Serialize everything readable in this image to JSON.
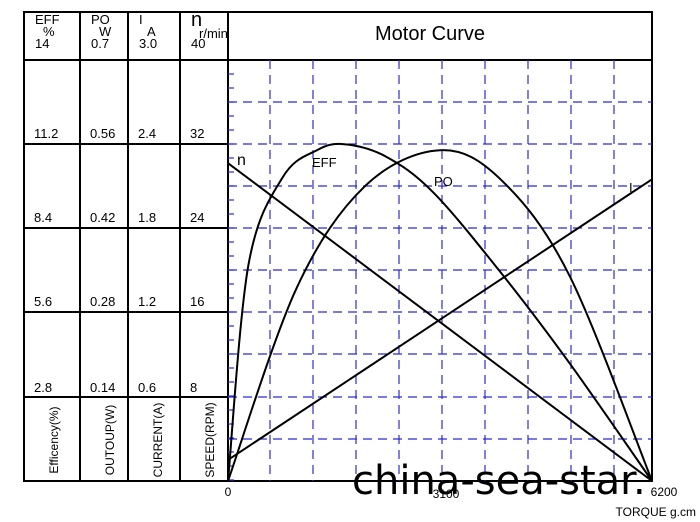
{
  "chart_data": {
    "type": "line",
    "title": "Motor Curve",
    "xlabel": "TORQUE g.cm",
    "xlim": [
      0,
      6200
    ],
    "x_ticks": [
      "0",
      "3100",
      "6200"
    ],
    "columns": [
      {
        "key": "eff",
        "header": [
          "EFF",
          "%",
          "14"
        ],
        "ticks": [
          "11.2",
          "8.4",
          "5.6",
          "2.8"
        ],
        "vertical_label": "Efficency(%)",
        "ylim": [
          0,
          14
        ]
      },
      {
        "key": "po",
        "header": [
          "PO",
          "W",
          "0.7"
        ],
        "ticks": [
          "0.56",
          "0.42",
          "0.28",
          "0.14"
        ],
        "vertical_label": "OUTOUP(W)",
        "ylim": [
          0,
          0.7
        ]
      },
      {
        "key": "i",
        "header": [
          "I",
          "A",
          "3.0"
        ],
        "ticks": [
          "2.4",
          "1.8",
          "1.2",
          "0.6"
        ],
        "vertical_label": "CURRENT(A)",
        "ylim": [
          0,
          3.0
        ]
      },
      {
        "key": "n",
        "header": [
          "n",
          "r/min",
          "40"
        ],
        "ticks": [
          "32",
          "24",
          "16",
          "8"
        ],
        "vertical_label": "SPEED(RPM)",
        "ylim": [
          0,
          40
        ]
      }
    ],
    "series": [
      {
        "name": "n",
        "axis": "n",
        "x": [
          0,
          6200
        ],
        "values": [
          30.2,
          0
        ]
      },
      {
        "name": "I",
        "axis": "i",
        "x": [
          0,
          6200
        ],
        "values": [
          0.15,
          2.15
        ]
      },
      {
        "name": "PO",
        "axis": "po",
        "x": [
          0,
          1000,
          2000,
          3100,
          4000,
          5000,
          6200
        ],
        "values": [
          0,
          0.32,
          0.49,
          0.55,
          0.5,
          0.34,
          0
        ]
      },
      {
        "name": "EFF",
        "axis": "eff",
        "x": [
          0,
          300,
          800,
          1300,
          1700,
          2300,
          3000,
          4000,
          5000,
          6200
        ],
        "values": [
          0,
          7.2,
          10.1,
          11.0,
          11.2,
          10.8,
          9.6,
          6.9,
          3.9,
          0
        ]
      }
    ],
    "grid": true,
    "watermark": "china-sea-star."
  }
}
